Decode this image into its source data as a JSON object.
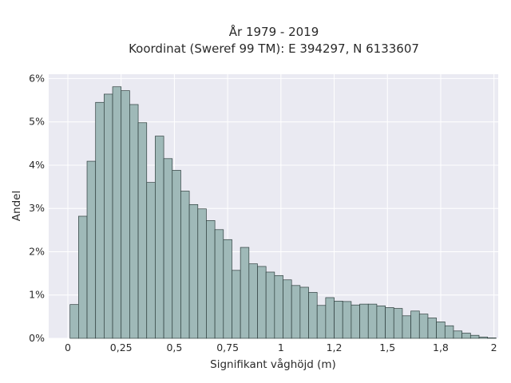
{
  "chart_data": {
    "type": "bar",
    "title_line1": "År 1979 - 2019",
    "title_line2": "Koordinat (Sweref 99 TM): E 394297, N 6133607",
    "xlabel": "Signifikant våghöjd (m)",
    "ylabel": "Andel",
    "x_ticks": [
      {
        "value": 0,
        "label": "0"
      },
      {
        "value": 0.25,
        "label": "0,25"
      },
      {
        "value": 0.5,
        "label": "0,5"
      },
      {
        "value": 0.75,
        "label": "0,75"
      },
      {
        "value": 1,
        "label": "1"
      },
      {
        "value": 1.25,
        "label": "1,2"
      },
      {
        "value": 1.5,
        "label": "1,5"
      },
      {
        "value": 1.75,
        "label": "1,8"
      },
      {
        "value": 2,
        "label": "2"
      }
    ],
    "y_ticks": [
      {
        "value": 0,
        "label": "0%"
      },
      {
        "value": 1,
        "label": "1%"
      },
      {
        "value": 2,
        "label": "2%"
      },
      {
        "value": 3,
        "label": "3%"
      },
      {
        "value": 4,
        "label": "4%"
      },
      {
        "value": 5,
        "label": "5%"
      },
      {
        "value": 6,
        "label": "6%"
      }
    ],
    "xlim": [
      -0.09,
      2.02
    ],
    "ylim": [
      0,
      6.1
    ],
    "bin_start": 0.01,
    "bin_width": 0.04,
    "values": [
      0.78,
      2.82,
      4.09,
      5.45,
      5.64,
      5.81,
      5.72,
      5.4,
      4.98,
      3.6,
      4.67,
      4.15,
      3.88,
      3.4,
      3.09,
      2.99,
      2.72,
      2.51,
      2.28,
      1.57,
      2.1,
      1.72,
      1.66,
      1.53,
      1.45,
      1.35,
      1.22,
      1.18,
      1.06,
      0.76,
      0.94,
      0.86,
      0.85,
      0.77,
      0.79,
      0.79,
      0.75,
      0.71,
      0.69,
      0.52,
      0.63,
      0.56,
      0.47,
      0.38,
      0.29,
      0.17,
      0.12,
      0.07,
      0.03,
      0.01
    ],
    "grid": true,
    "colors": {
      "bar_fill": "#9fb9b8",
      "bar_edge": "#2f3f3e",
      "plot_bg": "#eaeaf2",
      "grid": "#ffffff"
    }
  }
}
